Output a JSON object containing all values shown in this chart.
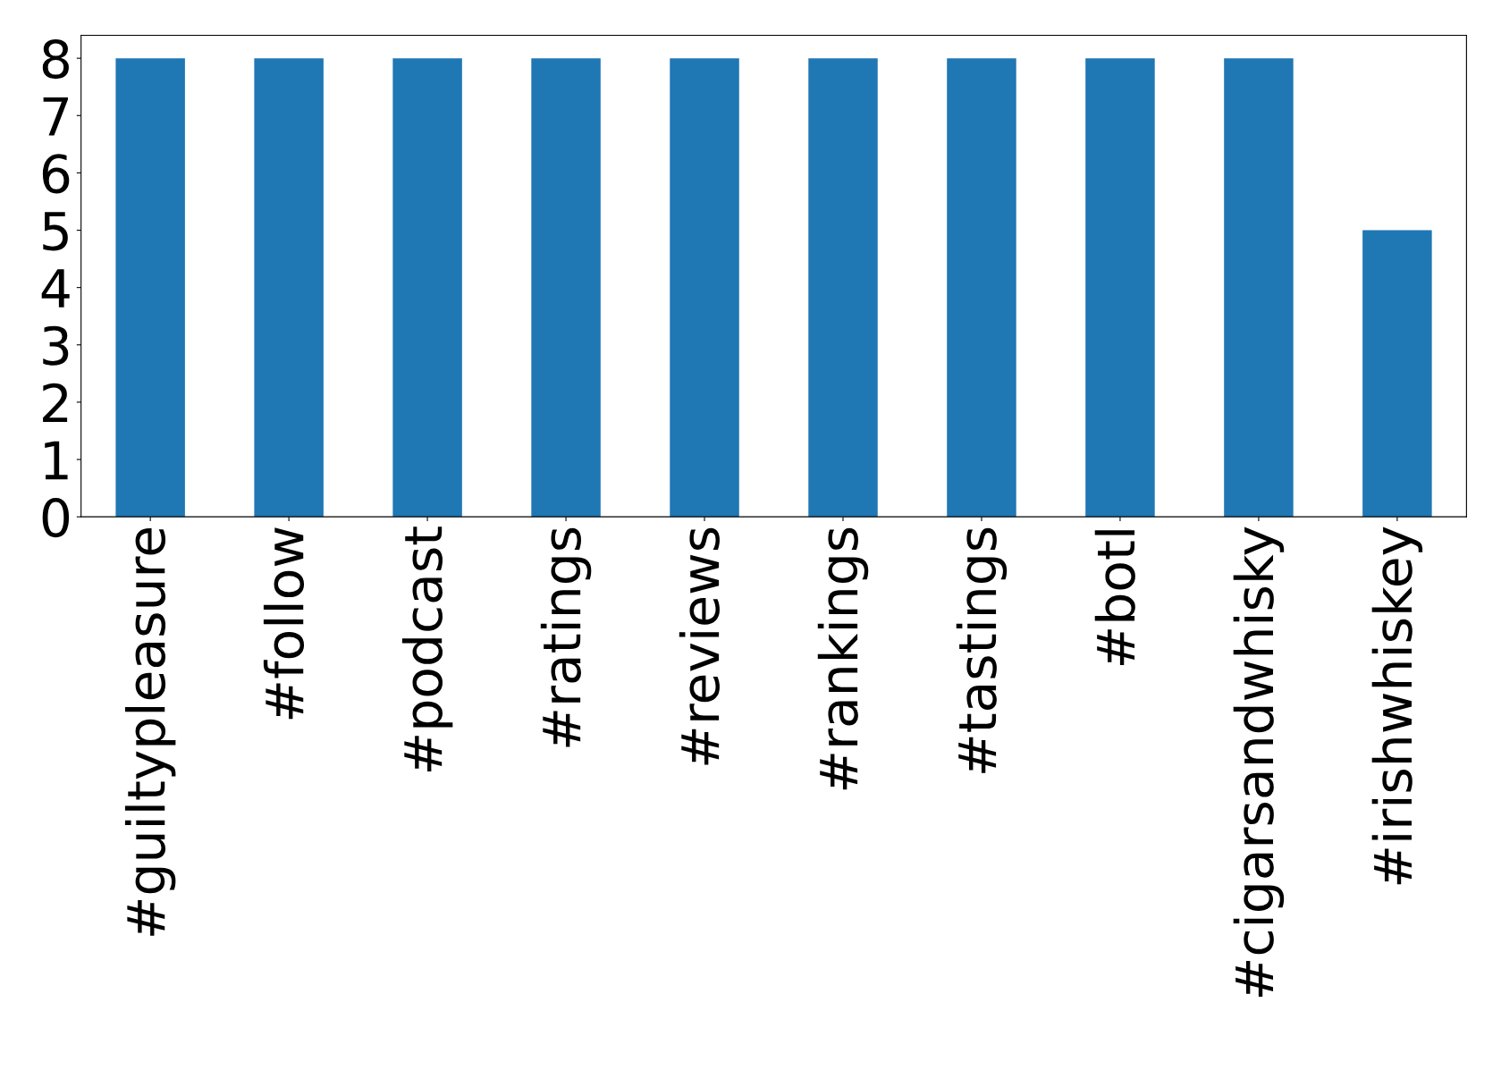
{
  "chart_data": {
    "type": "bar",
    "categories": [
      "#guiltypleasure",
      "#follow",
      "#podcast",
      "#ratings",
      "#reviews",
      "#rankings",
      "#tastings",
      "#botl",
      "#cigarsandwhisky",
      "#irishwhiskey"
    ],
    "values": [
      8,
      8,
      8,
      8,
      8,
      8,
      8,
      8,
      8,
      5
    ],
    "color": "#1f77b4",
    "ylim": [
      0,
      8.4
    ],
    "yticks": [
      0,
      1,
      2,
      3,
      4,
      5,
      6,
      7,
      8
    ],
    "grid": false,
    "legend": false
  }
}
